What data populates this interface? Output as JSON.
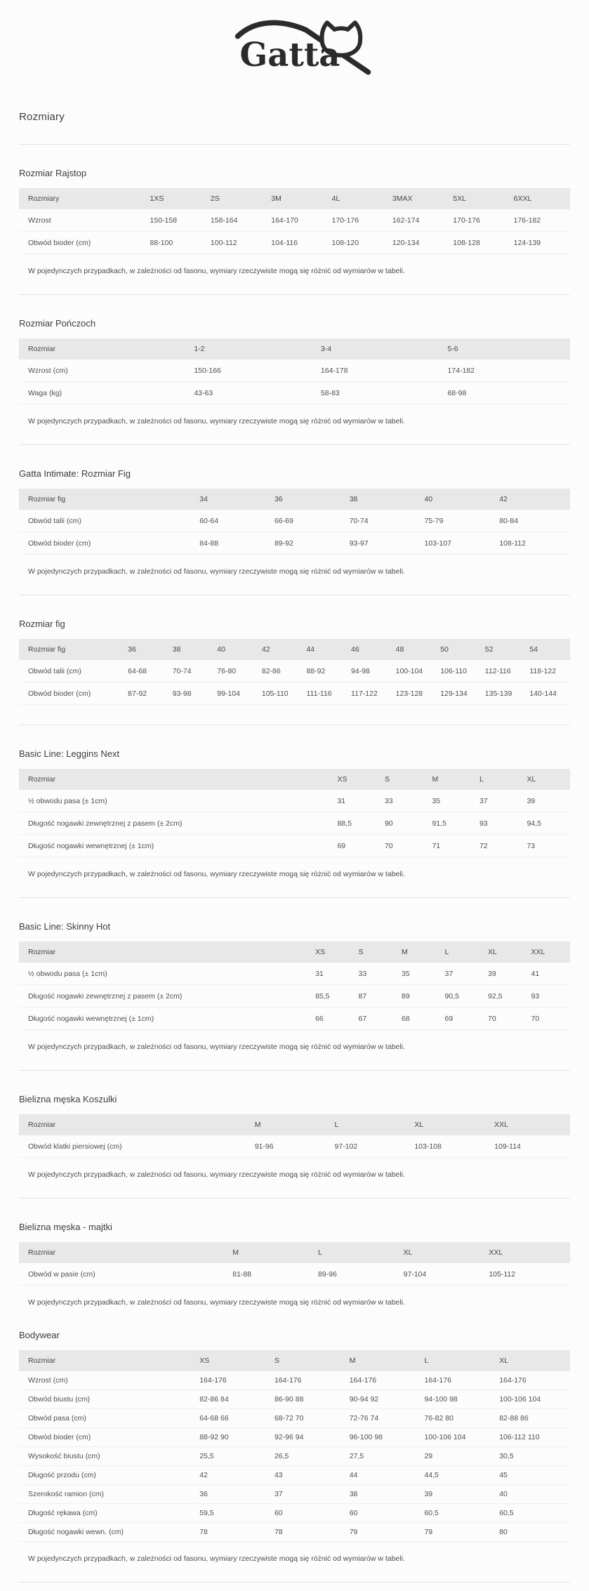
{
  "page": {
    "brand": "Gatta",
    "title": "Rozmiary",
    "disclaimer": "W pojedynczych przypadkach, w zależności od fasonu, wymiary rzeczywiste mogą się różnić od wymiarów w tabeli."
  },
  "colors": {
    "page_bg": "#fcfcfc",
    "table_header_bg": "#e8e8e8",
    "text": "#4a4a4a",
    "divider": "#e4e4e4",
    "logo_ink": "#2b2b2b"
  },
  "sections": [
    {
      "title": "Rozmiar Rajstop",
      "divider_before": true,
      "show_disclaimer": true,
      "label_width": 23,
      "header": [
        "Rozmiary",
        "1XS",
        "2S",
        "3M",
        "4L",
        "3MAX",
        "5XL",
        "6XXL"
      ],
      "rows": [
        [
          "Wzrost",
          "150-158",
          "158-164",
          "164-170",
          "170-176",
          "162-174",
          "170-176",
          "176-182"
        ],
        [
          "Obwód bioder (cm)",
          "88-100",
          "100-112",
          "104-116",
          "108-120",
          "120-134",
          "108-128",
          "124-139"
        ]
      ]
    },
    {
      "title": "Rozmiar Pończoch",
      "divider_before": true,
      "show_disclaimer": true,
      "label_width": 31,
      "header": [
        "Rozmiar",
        "1-2",
        "3-4",
        "5-6"
      ],
      "rows": [
        [
          "Wzrost (cm)",
          "150-166",
          "164-178",
          "174-182"
        ],
        [
          "Waga (kg)",
          "43-63",
          "58-83",
          "68-98"
        ]
      ]
    },
    {
      "title": "Gatta Intimate: Rozmiar Fig",
      "divider_before": true,
      "show_disclaimer": true,
      "label_width": 32,
      "header": [
        "Rozmiar fig",
        "34",
        "36",
        "38",
        "40",
        "42"
      ],
      "rows": [
        [
          "Obwód talii (cm)",
          "60-64",
          "66-69",
          "70-74",
          "75-79",
          "80-84"
        ],
        [
          "Obwód bioder (cm)",
          "84-88",
          "89-92",
          "93-97",
          "103-107",
          "108-112"
        ]
      ]
    },
    {
      "title": "Rozmiar fig",
      "divider_before": true,
      "show_disclaimer": false,
      "label_width": 19,
      "header": [
        "Rozmiar fig",
        "36",
        "38",
        "40",
        "42",
        "44",
        "46",
        "48",
        "50",
        "52",
        "54"
      ],
      "rows": [
        [
          "Obwód talii (cm)",
          "64-68",
          "70-74",
          "76-80",
          "82-86",
          "88-92",
          "94-98",
          "100-104",
          "106-110",
          "112-116",
          "118-122"
        ],
        [
          "Obwód bioder (cm)",
          "87-92",
          "93-98",
          "99-104",
          "105-110",
          "111-116",
          "117-122",
          "123-128",
          "129-134",
          "135-139",
          "140-144"
        ]
      ]
    },
    {
      "title": "Basic Line: Leggins Next",
      "divider_before": true,
      "show_disclaimer": true,
      "label_width": 57,
      "header": [
        "Rozmiar",
        "XS",
        "S",
        "M",
        "L",
        "XL"
      ],
      "rows": [
        [
          "½ obwodu pasa (± 1cm)",
          "31",
          "33",
          "35",
          "37",
          "39"
        ],
        [
          "Długość nogawki zewnętrznej z pasem (± 2cm)",
          "88,5",
          "90",
          "91,5",
          "93",
          "94,5"
        ],
        [
          "Długość nogawki wewnętrznej (± 1cm)",
          "69",
          "70",
          "71",
          "72",
          "73"
        ]
      ]
    },
    {
      "title": "Basic Line: Skinny Hot",
      "divider_before": true,
      "show_disclaimer": true,
      "label_width": 53,
      "header": [
        "Rozmiar",
        "XS",
        "S",
        "M",
        "L",
        "XL",
        "XXL"
      ],
      "rows": [
        [
          "½ obwodu pasa (± 1cm)",
          "31",
          "33",
          "35",
          "37",
          "39",
          "41"
        ],
        [
          "Długość nogawki zewnętrznej z pasem (± 2cm)",
          "85,5",
          "87",
          "89",
          "90,5",
          "92,5",
          "93"
        ],
        [
          "Długość nogawki wewnętrznej (± 1cm)",
          "66",
          "67",
          "68",
          "69",
          "70",
          "70"
        ]
      ]
    },
    {
      "title": "Bielizna męska Koszulki",
      "divider_before": true,
      "show_disclaimer": true,
      "label_width": 42,
      "header": [
        "Rozmiar",
        "M",
        "L",
        "XL",
        "XXL"
      ],
      "rows": [
        [
          "Obwód klatki piersiowej (cm)",
          "91-96",
          "97-102",
          "103-108",
          "109-114"
        ]
      ]
    },
    {
      "title": "Bielizna męska - majtki",
      "divider_before": true,
      "show_disclaimer": true,
      "label_width": 38,
      "header": [
        "Rozmiar",
        "M",
        "L",
        "XL",
        "XXL"
      ],
      "rows": [
        [
          "Obwód w pasie (cm)",
          "81-88",
          "89-96",
          "97-104",
          "105-112"
        ]
      ]
    },
    {
      "title": "Bodywear",
      "divider_before": false,
      "show_disclaimer": true,
      "compact": true,
      "label_width": 32,
      "header": [
        "Rozmiar",
        "XS",
        "S",
        "M",
        "L",
        "XL"
      ],
      "rows": [
        [
          "Wzrost (cm)",
          "164-176",
          "164-176",
          "164-176",
          "164-176",
          "164-176"
        ],
        [
          "Obwód biustu (cm)",
          "82-86 84",
          "86-90 88",
          "90-94 92",
          "94-100 98",
          "100-106 104"
        ],
        [
          "Obwód pasa (cm)",
          "64-68 66",
          "68-72 70",
          "72-76 74",
          "76-82 80",
          "82-88 86"
        ],
        [
          "Obwód bioder (cm)",
          "88-92 90",
          "92-96 94",
          "96-100 98",
          "100-106 104",
          "106-112 110"
        ],
        [
          "Wysokość biustu (cm)",
          "25,5",
          "26,5",
          "27,5",
          "29",
          "30,5"
        ],
        [
          "Długość przodu (cm)",
          "42",
          "43",
          "44",
          "44,5",
          "45"
        ],
        [
          "Szerokość ramion (cm)",
          "36",
          "37",
          "38",
          "39",
          "40"
        ],
        [
          "Długość rękawa (cm)",
          "59,5",
          "60",
          "60",
          "60,5",
          "60,5"
        ],
        [
          "Długość nogawki wewn. (cm)",
          "78",
          "78",
          "79",
          "79",
          "80"
        ]
      ]
    }
  ]
}
